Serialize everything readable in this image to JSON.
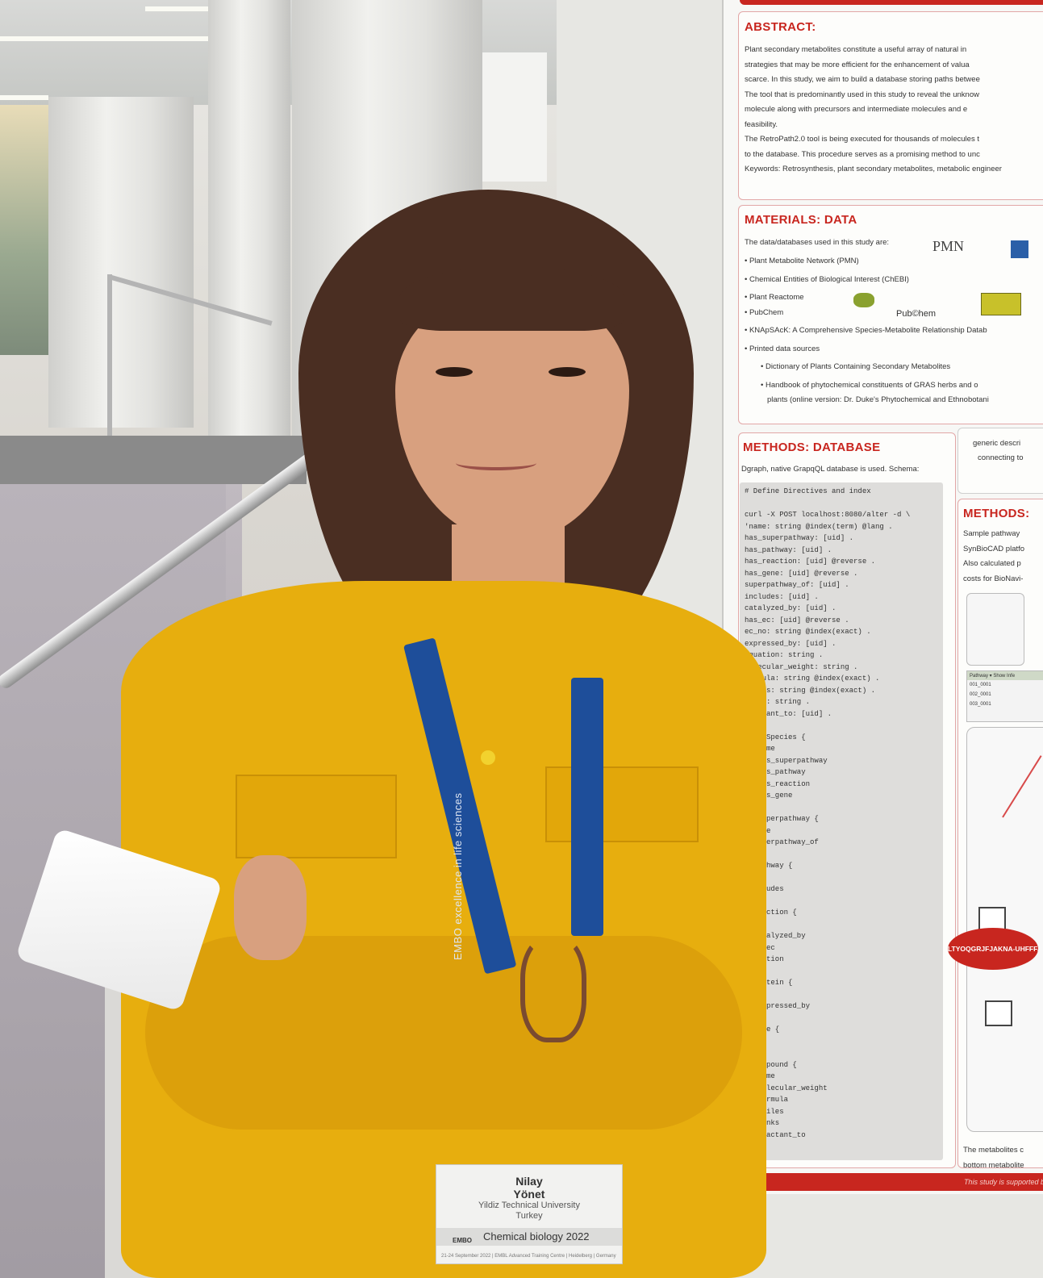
{
  "poster": {
    "abstract": {
      "title": "ABSTRACT:",
      "lines": [
        "Plant secondary metabolites constitute a useful array of natural in",
        "strategies that may be more efficient for the enhancement of valua",
        "scarce. In this study, we aim to build a database storing paths betwee",
        "The tool that is predominantly used in this study to reveal the unknow",
        "molecule along with precursors and intermediate molecules and e",
        "feasibility.",
        "The RetroPath2.0 tool is being executed for thousands of molecules t",
        "to the database. This procedure serves as a promising method to unc",
        "Keywords: Retrosynthesis, plant secondary metabolites, metabolic engineer"
      ]
    },
    "materials": {
      "title": "MATERIALS: DATA",
      "intro": "The data/databases used in this study are:",
      "items": [
        "• Plant Metabolite Network (PMN)",
        "• Chemical Entities of Biological Interest (ChEBI)",
        "• Plant Reactome",
        "• PubChem",
        "• KNApSAcK: A Comprehensive Species-Metabolite Relationship Datab",
        "• Printed data sources",
        "• Dictionary of Plants Containing Secondary Metabolites",
        "• Handbook of phytochemical constituents of GRAS herbs and o",
        "plants (online version: Dr. Duke's Phytochemical and Ethnobotani"
      ],
      "logo_pmn": "PMN",
      "logo_pubchem": "Pub©hem"
    },
    "methods_db": {
      "title": "METHODS: DATABASE",
      "intro": "Dgraph, native GrapqQL database is used. Schema:",
      "code": [
        "# Define Directives and index",
        "",
        "curl -X POST localhost:8080/alter -d \\",
        "'name: string @index(term) @lang .",
        "has_superpathway: [uid] .",
        "has_pathway: [uid] .",
        "has_reaction: [uid] @reverse .",
        "has_gene: [uid] @reverse .",
        "superpathway_of: [uid] .",
        "includes: [uid] .",
        "catalyzed_by: [uid] .",
        "has_ec: [uid] @reverse .",
        "ec_no: string @index(exact) .",
        "expressed_by: [uid] .",
        "equation: string .",
        "molecular_weight: string .",
        "formula: string @index(exact) .",
        "smiles: string @index(exact) .",
        "links: string .",
        "reactant_to: [uid] .",
        "",
        "type Species {",
        "   name",
        "   has_superpathway",
        "   has_pathway",
        "   has_reaction",
        "   has_gene",
        "",
        "pe Superpathway {",
        "  name",
        "  superpathway_of",
        "",
        "  Pathway {",
        "   e",
        "   cludes",
        "",
        "  Reaction {",
        "   me",
        "   rtalyzed_by",
        "   s_ec",
        "   uation",
        "",
        "  Protein {",
        "   me",
        "   expressed_by",
        "",
        "  Gene {",
        "   me",
        "",
        "  Compound {",
        "   name",
        "   molecular_weight",
        "   formula",
        "   smiles",
        "   links",
        "   reactant_to",
        "}'"
      ]
    },
    "side_box": {
      "line1": "generic descri",
      "line2": "connecting to"
    },
    "methods_right": {
      "title": "METHODS:",
      "lines": [
        "Sample pathway",
        "SynBioCAD platfo",
        "Also calculated p",
        "costs for BioNavi-"
      ],
      "table_header": "Pathway  ▾  Show  Infe",
      "table_rows": [
        "001_0001",
        "002_0001",
        "003_0001"
      ],
      "molecule_label": "LTYOQGRJFJAKNA-UHFFFAOYSA-N",
      "bottom_text_1": "The metabolites c",
      "bottom_text_2": "bottom metabolite"
    },
    "footer": "This study is supported b"
  },
  "lanyard": {
    "text": "EMBO  excellence in life sciences",
    "color": "#1e4e9a"
  },
  "badge": {
    "first_name": "Nilay",
    "last_name": "Yönet",
    "university": "Yildiz Technical University",
    "country": "Turkey",
    "logo": "EMBO",
    "conference": "Chemical biology 2022",
    "dates": "21-24 September 2022 | EMBL Advanced Training Centre | Heidelberg | Germany"
  },
  "colors": {
    "shirt": "#e7ae0e",
    "hair": "#4a2e22",
    "poster_accent": "#c8261f"
  }
}
